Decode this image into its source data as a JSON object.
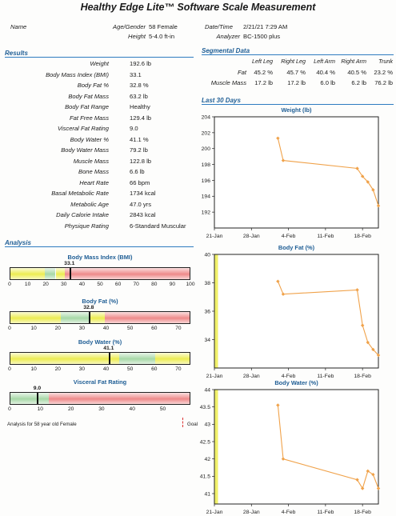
{
  "header": {
    "title": "Healthy Edge Lite™ Software   Scale Measurement",
    "name_label": "Name",
    "age_gender_label": "Age/Gender",
    "age_gender_value": "58 Female",
    "height_label": "Height",
    "height_value": "5-4.0 ft-in",
    "datetime_label": "Date/Time",
    "datetime_value": "2/21/21 7:29 AM",
    "analyzer_label": "Analyzer",
    "analyzer_value": "BC-1500 plus"
  },
  "results": {
    "heading": "Results",
    "rows": [
      {
        "label": "Weight",
        "value": "192.6 lb"
      },
      {
        "label": "Body Mass Index (BMI)",
        "value": "33.1"
      },
      {
        "label": "Body Fat %",
        "value": "32.8 %"
      },
      {
        "label": "Body Fat Mass",
        "value": "63.2 lb"
      },
      {
        "label": "Body Fat Range",
        "value": "Healthy"
      },
      {
        "label": "Fat Free Mass",
        "value": "129.4 lb"
      },
      {
        "label": "Visceral Fat Rating",
        "value": "9.0"
      },
      {
        "label": "Body Water %",
        "value": "41.1 %"
      },
      {
        "label": "Body Water Mass",
        "value": "79.2 lb"
      },
      {
        "label": "Muscle Mass",
        "value": "122.8 lb"
      },
      {
        "label": "Bone Mass",
        "value": "6.6 lb"
      },
      {
        "label": "Heart Rate",
        "value": "66 bpm"
      },
      {
        "label": "Basal Metabolic Rate",
        "value": "1734 kcal"
      },
      {
        "label": "Metabolic Age",
        "value": "47.0 yrs"
      },
      {
        "label": "Daily Calorie Intake",
        "value": "2843 kcal"
      },
      {
        "label": "Physique Rating",
        "value": "6-Standard Muscular"
      }
    ]
  },
  "segmental": {
    "heading": "Segmental Data",
    "columns": [
      "Left Leg",
      "Right Leg",
      "Left Arm",
      "Right Arm",
      "Trunk"
    ],
    "rows": [
      {
        "label": "Fat",
        "values": [
          "45.2 %",
          "45.7 %",
          "40.4 %",
          "40.5 %",
          "23.2 %"
        ]
      },
      {
        "label": "Muscle Mass",
        "values": [
          "17.2 lb",
          "17.2 lb",
          "6.0 lb",
          "6.2 lb",
          "76.2 lb"
        ]
      }
    ]
  },
  "analysis": {
    "heading": "Analysis",
    "footnote": "Analysis for 58 year old Female",
    "goal_label": "Goal",
    "bars": [
      {
        "title": "Body Mass Index (BMI)",
        "value": 33.1,
        "value_label": "33.1",
        "min": 0,
        "max": 100,
        "ticks": [
          "0",
          "10",
          "20",
          "30",
          "40",
          "50",
          "60",
          "70",
          "80",
          "90",
          "100"
        ],
        "zones": [
          {
            "from": 0,
            "to": 19,
            "color": "yellow"
          },
          {
            "from": 19,
            "to": 25,
            "color": "green"
          },
          {
            "from": 25,
            "to": 30,
            "color": "yellow"
          },
          {
            "from": 30,
            "to": 100,
            "color": "red"
          }
        ]
      },
      {
        "title": "Body Fat (%)",
        "value": 32.8,
        "value_label": "32.8",
        "min": 0,
        "max": 75,
        "ticks": [
          "0",
          "10",
          "20",
          "30",
          "40",
          "50",
          "60",
          "70"
        ],
        "zones": [
          {
            "from": 0,
            "to": 21,
            "color": "yellow"
          },
          {
            "from": 21,
            "to": 33,
            "color": "green"
          },
          {
            "from": 33,
            "to": 39,
            "color": "yellow"
          },
          {
            "from": 39,
            "to": 75,
            "color": "red"
          }
        ]
      },
      {
        "title": "Body Water (%)",
        "value": 41.1,
        "value_label": "41.1",
        "min": 0,
        "max": 75,
        "ticks": [
          "0",
          "10",
          "20",
          "30",
          "40",
          "50",
          "60",
          "70"
        ],
        "zones": [
          {
            "from": 0,
            "to": 45,
            "color": "yellow"
          },
          {
            "from": 45,
            "to": 60,
            "color": "green"
          },
          {
            "from": 60,
            "to": 75,
            "color": "yellow"
          }
        ]
      },
      {
        "title": "Visceral Fat Rating",
        "value": 9.0,
        "value_label": "9.0",
        "min": 0,
        "max": 59,
        "ticks": [
          "0",
          "10",
          "20",
          "30",
          "40",
          "50"
        ],
        "zones": [
          {
            "from": 0,
            "to": 12.5,
            "color": "green"
          },
          {
            "from": 12.5,
            "to": 59,
            "color": "red"
          }
        ]
      }
    ]
  },
  "trends": {
    "heading": "Last 30 Days"
  },
  "colors": {
    "accent": "#1f5e95",
    "rule": "#2e7cc0",
    "series": "#f0a24a",
    "goal": "#d33333"
  },
  "chart_data": [
    {
      "type": "line",
      "title": "Weight (lb)",
      "x_ticks": [
        "21-Jan",
        "28-Jan",
        "4-Feb",
        "11-Feb",
        "18-Feb"
      ],
      "xlim": [
        "2021-01-21",
        "2021-02-21"
      ],
      "ylim": [
        190,
        204
      ],
      "y_ticks": [
        192,
        194,
        196,
        198,
        200,
        202,
        204
      ],
      "grid": false,
      "series": [
        {
          "x": [
            "2021-02-02",
            "2021-02-03",
            "2021-02-17",
            "2021-02-18",
            "2021-02-19",
            "2021-02-20",
            "2021-02-21"
          ],
          "y": [
            201.3,
            198.5,
            197.5,
            196.5,
            195.8,
            194.8,
            192.8
          ]
        }
      ]
    },
    {
      "type": "line",
      "title": "Body Fat (%)",
      "x_ticks": [
        "21-Jan",
        "28-Jan",
        "4-Feb",
        "11-Feb",
        "18-Feb"
      ],
      "xlim": [
        "2021-01-21",
        "2021-02-21"
      ],
      "ylim": [
        32,
        40
      ],
      "y_ticks": [
        34,
        36,
        38,
        40
      ],
      "grid": false,
      "series": [
        {
          "x": [
            "2021-02-02",
            "2021-02-03",
            "2021-02-17",
            "2021-02-18",
            "2021-02-19",
            "2021-02-20",
            "2021-02-21"
          ],
          "y": [
            38.1,
            37.2,
            37.5,
            35.0,
            33.8,
            33.3,
            32.9
          ]
        }
      ]
    },
    {
      "type": "line",
      "title": "Body Water (%)",
      "x_ticks": [
        "21-Jan",
        "28-Jan",
        "4-Feb",
        "11-Feb",
        "18-Feb"
      ],
      "xlim": [
        "2021-01-21",
        "2021-02-21"
      ],
      "ylim": [
        40.7,
        44
      ],
      "y_ticks": [
        41,
        41.5,
        42,
        42.5,
        43,
        43.5,
        44
      ],
      "grid": false,
      "series": [
        {
          "x": [
            "2021-02-02",
            "2021-02-03",
            "2021-02-17",
            "2021-02-18",
            "2021-02-19",
            "2021-02-20",
            "2021-02-21"
          ],
          "y": [
            43.55,
            42.0,
            41.4,
            41.15,
            41.65,
            41.55,
            41.15
          ]
        }
      ]
    }
  ]
}
